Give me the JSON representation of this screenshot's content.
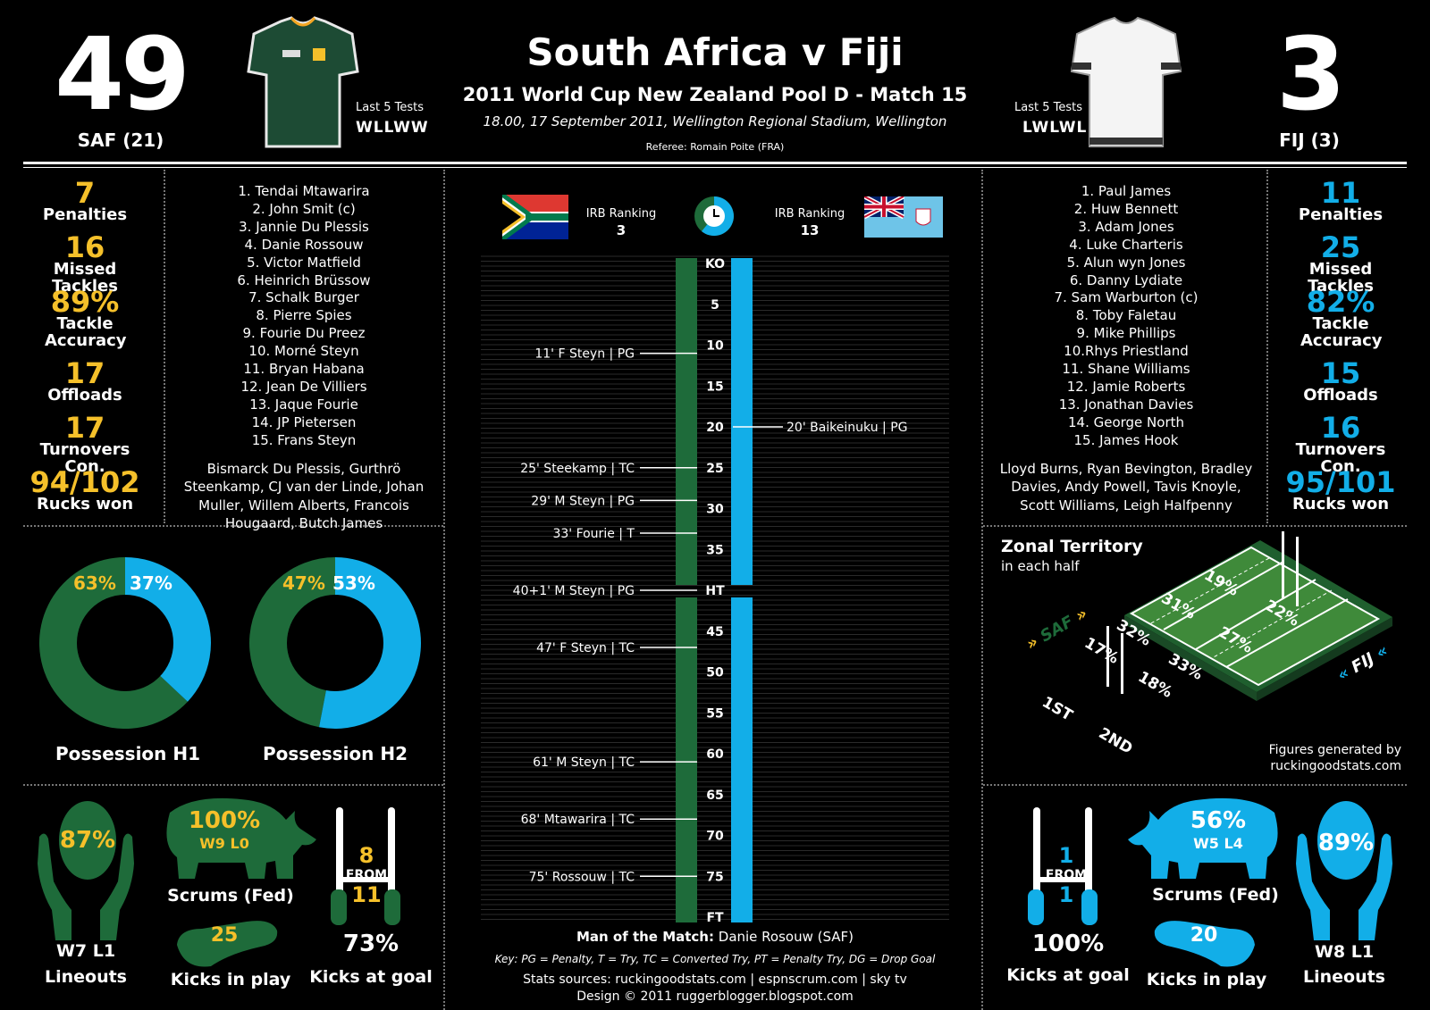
{
  "header": {
    "title": "South Africa v Fiji",
    "subtitle": "2011 World Cup New Zealand Pool D - Match 15",
    "details": "18.00, 17 September 2011, Wellington Regional Stadium, Wellington",
    "referee": "Referee: Romain Poite (FRA)"
  },
  "home": {
    "score": "49",
    "label": "SAF (21)",
    "last5_title": "Last 5 Tests",
    "last5": "WLLWW",
    "irb_label": "IRB Ranking",
    "irb_rank": "3",
    "color": "#1e6b3a",
    "stat_color": "#f5c02a",
    "stats": [
      {
        "value": "7",
        "label": "Penalties"
      },
      {
        "value": "16",
        "label": "Missed Tackles"
      },
      {
        "value": "89%",
        "label": "Tackle Accuracy"
      },
      {
        "value": "17",
        "label": "Offloads"
      },
      {
        "value": "17",
        "label": "Turnovers Con."
      },
      {
        "value": "94/102",
        "label": "Rucks won"
      }
    ],
    "players": [
      "1. Tendai Mtawarira",
      "2. John Smit (c)",
      "3. Jannie Du Plessis",
      "4. Danie Rossouw",
      "5. Victor Matfield",
      "6. Heinrich Brüssow",
      "7. Schalk Burger",
      "8. Pierre Spies",
      "9. Fourie Du Preez",
      "10. Morné Steyn",
      "11. Bryan Habana",
      "12. Jean De Villiers",
      "13. Jaque Fourie",
      "14. JP Pietersen",
      "15. Frans Steyn"
    ],
    "bench": "Bismarck Du Plessis,  Gurthrö Steenkamp, CJ van der Linde, Johan Muller, Willem Alberts, Francois Hougaard, Butch James",
    "possession_h1": 63,
    "possession_h2": 47,
    "lineouts_pct": "87%",
    "lineouts_record": "W7 L1",
    "lineouts_label": "Lineouts",
    "scrums_pct": "100%",
    "scrums_record": "W9 L0",
    "scrums_label": "Scrums (Fed)",
    "kicks_in_play": "25",
    "kicks_in_play_label": "Kicks in play",
    "kicks_goal_made": "8",
    "kicks_goal_from": "FROM",
    "kicks_goal_att": "11",
    "kicks_goal_pct": "73%",
    "kicks_goal_label": "Kicks at goal"
  },
  "away": {
    "score": "3",
    "label": "FIJ (3)",
    "last5_title": "Last 5 Tests",
    "last5": "LWLWL",
    "irb_label": "IRB Ranking",
    "irb_rank": "13",
    "color": "#12aee8",
    "stat_color": "#12aee8",
    "stats": [
      {
        "value": "11",
        "label": "Penalties"
      },
      {
        "value": "25",
        "label": "Missed Tackles"
      },
      {
        "value": "82%",
        "label": "Tackle Accuracy"
      },
      {
        "value": "15",
        "label": "Offloads"
      },
      {
        "value": "16",
        "label": "Turnovers Con."
      },
      {
        "value": "95/101",
        "label": "Rucks won"
      }
    ],
    "players": [
      "1. Paul James",
      "2. Huw Bennett",
      "3. Adam Jones",
      "4. Luke Charteris",
      "5. Alun wyn Jones",
      "6. Danny Lydiate",
      "7. Sam Warburton (c)",
      "8. Toby Faletau",
      "9. Mike Phillips",
      "10.Rhys Priestland",
      "11. Shane Williams",
      "12. Jamie Roberts",
      "13. Jonathan Davies",
      "14. George North",
      "15. James Hook"
    ],
    "bench": "Lloyd Burns, Ryan Bevington, Bradley Davies, Andy Powell, Tavis Knoyle, Scott Williams, Leigh Halfpenny",
    "possession_h1": 37,
    "possession_h2": 53,
    "lineouts_pct": "89%",
    "lineouts_record": "W8 L1",
    "lineouts_label": "Lineouts",
    "scrums_pct": "56%",
    "scrums_record": "W5 L4",
    "scrums_label": "Scrums (Fed)",
    "kicks_in_play": "20",
    "kicks_in_play_label": "Kicks in play",
    "kicks_goal_made": "1",
    "kicks_goal_from": "FROM",
    "kicks_goal_att": "1",
    "kicks_goal_pct": "100%",
    "kicks_goal_label": "Kicks at goal"
  },
  "possession": {
    "h1_label": "Possession H1",
    "h2_label": "Possession H2"
  },
  "timeline": {
    "ticks": [
      "KO",
      "5",
      "10",
      "15",
      "20",
      "25",
      "30",
      "35",
      "HT",
      "45",
      "50",
      "55",
      "60",
      "65",
      "70",
      "75",
      "FT"
    ],
    "home_events": [
      {
        "minute": 11,
        "text": "11' F Steyn | PG"
      },
      {
        "minute": 25,
        "text": "25' Steekamp | TC"
      },
      {
        "minute": 29,
        "text": "29' M Steyn | PG"
      },
      {
        "minute": 33,
        "text": "33' Fourie | T"
      },
      {
        "minute": 40,
        "text": "40+1' M Steyn | PG"
      },
      {
        "minute": 47,
        "text": "47' F Steyn | TC"
      },
      {
        "minute": 61,
        "text": "61' M Steyn | TC"
      },
      {
        "minute": 68,
        "text": "68' Mtawarira | TC"
      },
      {
        "minute": 75,
        "text": "75' Rossouw | TC"
      }
    ],
    "away_events": [
      {
        "minute": 20,
        "text": "20' Baikeinuku | PG"
      }
    ]
  },
  "footer": {
    "motm_label": "Man of the Match:",
    "motm": " Danie Rosouw (SAF)",
    "key": "Key: PG = Penalty, T = Try, TC = Converted Try, PT = Penalty Try, DG = Drop Goal",
    "sources": "Stats sources: ruckingoodstats.com | espnscrum.com | sky tv",
    "design": "Design © 2011 ruggerblogger.blogspot.com"
  },
  "territory": {
    "title": "Zonal Territory",
    "subtitle": "in each half",
    "home_tag": "SAF",
    "away_tag": "FIJ",
    "first_label": "1ST",
    "second_label": "2ND",
    "first_half": [
      "17%",
      "32%",
      "31%",
      "19%"
    ],
    "second_half": [
      "18%",
      "33%",
      "27%",
      "22%"
    ],
    "credit_line1": "Figures generated by",
    "credit_line2": "ruckingoodstats.com"
  }
}
